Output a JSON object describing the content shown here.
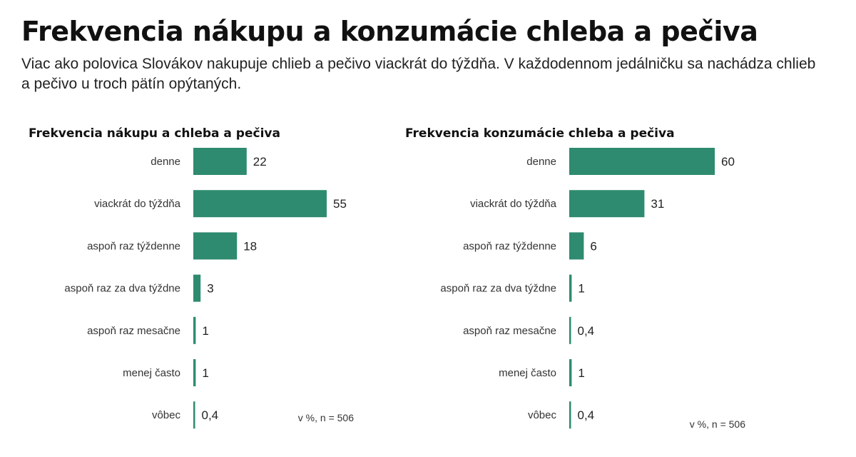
{
  "header": {
    "title": "Frekvencia nákupu a konzumácie chleba a pečiva",
    "subtitle": "Viac ako polovica Slovákov nakupuje chlieb a pečivo viackrát do týždňa. V každodennom jedálničku sa nachádza chlieb a pečivo u troch pätín opýtaných."
  },
  "colors": {
    "bar": "#2e8b6f",
    "axis": "#2e8b6f"
  },
  "chart_data": [
    {
      "type": "bar",
      "orientation": "horizontal",
      "title": "Frekvencia nákupu a chleba a pečiva",
      "categories": [
        "denne",
        "viackrát do týždňa",
        "aspoň raz týždenne",
        "aspoň raz za dva týždne",
        "aspoň raz mesačne",
        "menej často",
        "vôbec"
      ],
      "values": [
        22,
        55,
        18,
        3,
        1,
        1,
        0.4
      ],
      "value_labels": [
        "22",
        "55",
        "18",
        "3",
        "1",
        "1",
        "0,4"
      ],
      "note": "v %, n = 506",
      "xlim": [
        0,
        60
      ]
    },
    {
      "type": "bar",
      "orientation": "horizontal",
      "title": "Frekvencia konzumácie chleba a pečiva",
      "categories": [
        "denne",
        "viackrát do týždňa",
        "aspoň raz týždenne",
        "aspoň raz za dva týždne",
        "aspoň raz mesačne",
        "menej často",
        "vôbec"
      ],
      "values": [
        60,
        31,
        6,
        1,
        0.4,
        1,
        0.4
      ],
      "value_labels": [
        "60",
        "31",
        "6",
        "1",
        "0,4",
        "1",
        "0,4"
      ],
      "note": "v %, n = 506",
      "xlim": [
        0,
        60
      ]
    }
  ]
}
